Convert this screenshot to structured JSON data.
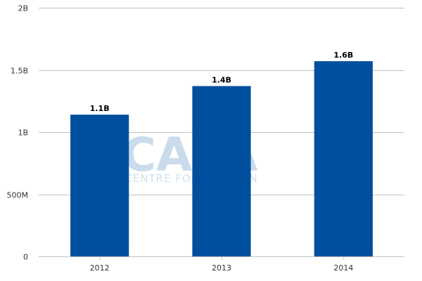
{
  "chart_data": {
    "type": "bar",
    "categories": [
      "2012",
      "2013",
      "2014"
    ],
    "values": [
      1.14,
      1.37,
      1.57
    ],
    "data_labels": [
      "1.1B",
      "1.4B",
      "1.6B"
    ],
    "y_ticks": [
      0,
      0.5,
      1,
      1.5,
      2
    ],
    "y_tick_labels": [
      "0",
      "500M",
      "1B",
      "1.5B",
      "2B"
    ],
    "ylim": [
      0,
      2
    ],
    "grid": true,
    "title": "",
    "xlabel": "",
    "ylabel": "",
    "bar_color": "#004f9f",
    "grid_color": "#c0c0c0"
  },
  "watermark": {
    "main": "CAPA",
    "sub": "CENTRE FOR AVIATION"
  }
}
